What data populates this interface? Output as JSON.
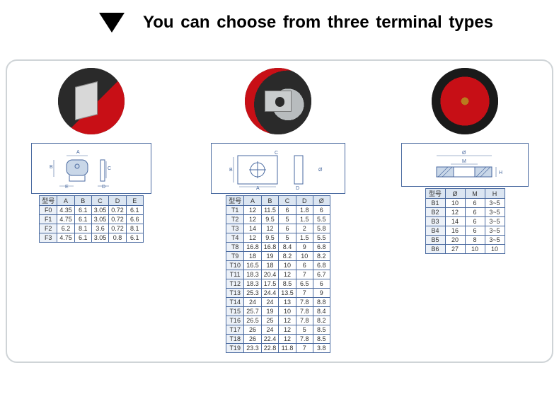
{
  "header": {
    "title": "You can choose from three terminal types"
  },
  "table1": {
    "label": "型号",
    "headers": [
      "A",
      "B",
      "C",
      "D",
      "E"
    ],
    "rows": [
      [
        "F0",
        "4.35",
        "6.1",
        "3.05",
        "0.72",
        "6.1"
      ],
      [
        "F1",
        "4.75",
        "6.1",
        "3.05",
        "0.72",
        "6.6"
      ],
      [
        "F2",
        "6.2",
        "8.1",
        "3.6",
        "0.72",
        "8.1"
      ],
      [
        "F3",
        "4.75",
        "6.1",
        "3.05",
        "0.8",
        "6.1"
      ]
    ]
  },
  "table2": {
    "label": "型号",
    "headers": [
      "A",
      "B",
      "C",
      "D",
      "Ø"
    ],
    "rows": [
      [
        "T1",
        "12",
        "11.5",
        "6",
        "1.8",
        "6"
      ],
      [
        "T2",
        "12",
        "9.5",
        "5",
        "1.5",
        "5.5"
      ],
      [
        "T3",
        "14",
        "12",
        "6",
        "2",
        "5.8"
      ],
      [
        "T4",
        "12",
        "9.5",
        "5",
        "1.5",
        "5.5"
      ],
      [
        "T8",
        "16.8",
        "16.8",
        "8.4",
        "9",
        "6.8"
      ],
      [
        "T9",
        "18",
        "19",
        "8.2",
        "10",
        "8.2"
      ],
      [
        "T10",
        "16.5",
        "18",
        "10",
        "6",
        "6.8"
      ],
      [
        "T11",
        "18.3",
        "20.4",
        "12",
        "7",
        "6.7"
      ],
      [
        "T12",
        "18.3",
        "17.5",
        "8.5",
        "6.5",
        "6"
      ],
      [
        "T13",
        "25.3",
        "24.4",
        "13.5",
        "7",
        "9"
      ],
      [
        "T14",
        "24",
        "24",
        "13",
        "7.8",
        "8.8"
      ],
      [
        "T15",
        "25.7",
        "19",
        "10",
        "7.8",
        "8.4"
      ],
      [
        "T16",
        "26.5",
        "25",
        "12",
        "7.8",
        "8.2"
      ],
      [
        "T17",
        "26",
        "24",
        "12",
        "5",
        "8.5"
      ],
      [
        "T18",
        "26",
        "22.4",
        "12",
        "7.8",
        "8.5"
      ],
      [
        "T19",
        "23.3",
        "22.8",
        "11.8",
        "7",
        "3.8"
      ]
    ]
  },
  "table3": {
    "label": "型号",
    "headers": [
      "Ø",
      "M",
      "H"
    ],
    "rows": [
      [
        "B1",
        "10",
        "6",
        "3~5"
      ],
      [
        "B2",
        "12",
        "6",
        "3~5"
      ],
      [
        "B3",
        "14",
        "6",
        "3~5"
      ],
      [
        "B4",
        "16",
        "6",
        "3~5"
      ],
      [
        "B5",
        "20",
        "8",
        "3~5"
      ],
      [
        "B6",
        "27",
        "10",
        "10"
      ]
    ]
  },
  "colors": {
    "border": "#4a6aa0",
    "headerFill": "#dbe5f1",
    "typeFill": "#ecf1f8",
    "panelBorder": "#cfd4d7",
    "red": "#c80f16",
    "black": "#1a1a1a"
  }
}
